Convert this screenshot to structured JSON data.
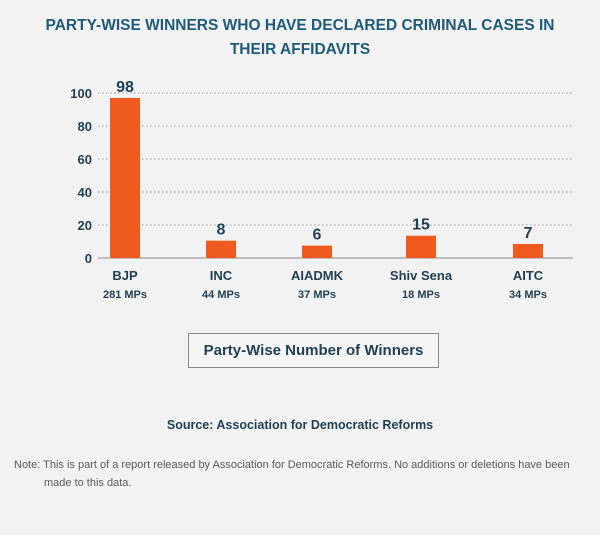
{
  "title_line1": "PARTY-WISE WINNERS WHO HAVE DECLARED CRIMINAL CASES IN",
  "title_line2": "THEIR AFFIDAVITS",
  "legend_label": "Party-Wise Number of Winners",
  "source": "Source: Association for Democratic Reforms",
  "note_line1": "Note: This is part of a report released by Association for Democratic Reforms. No additions or  deletions have been",
  "note_line2": "made to this data.",
  "colors": {
    "bar": "#f05a1e",
    "title": "#1f5a78",
    "text": "#1f3f55"
  },
  "chart_data": {
    "type": "bar",
    "categories": [
      "BJP",
      "INC",
      "AIADMK",
      "Shiv Sena",
      "AITC"
    ],
    "sublabels": [
      "281 MPs",
      "44 MPs",
      "37 MPs",
      "18 MPs",
      "34 MPs"
    ],
    "values": [
      98,
      8,
      6,
      15,
      7
    ],
    "bar_heights": [
      97,
      10.5,
      7.5,
      13.5,
      8.5
    ],
    "ylim": [
      0,
      100
    ],
    "yticks": [
      0,
      20,
      40,
      60,
      80,
      100
    ],
    "grid": true
  }
}
